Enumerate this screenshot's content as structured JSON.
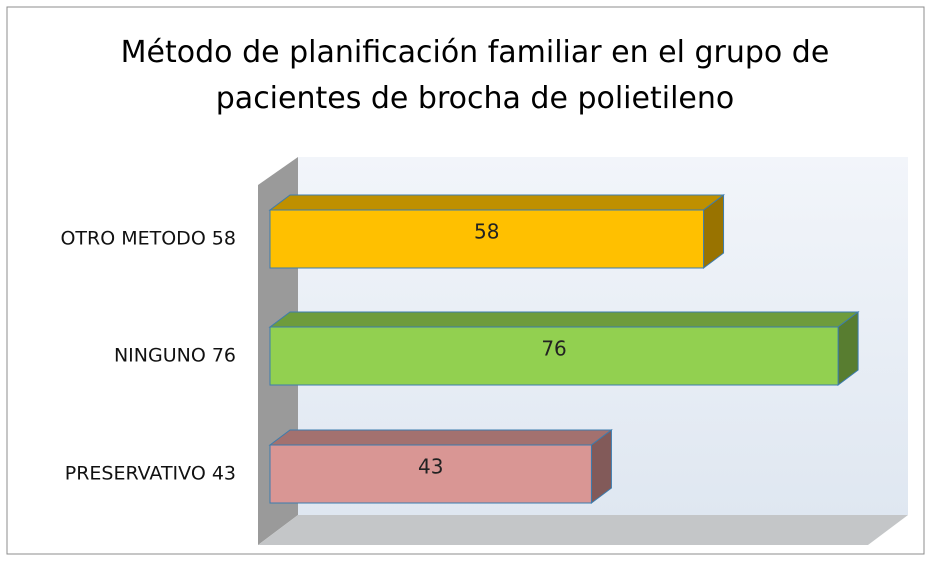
{
  "chart_data": {
    "type": "bar3d_horizontal",
    "title": "Método de planificación familiar en el grupo de pacientes de brocha de polietileno",
    "categories": [
      "OTRO METODO 58",
      "NINGUNO 76",
      "PRESERVATIVO 43"
    ],
    "values": [
      58,
      76,
      43
    ],
    "colors": [
      "#ffc000",
      "#92d050",
      "#d99694"
    ],
    "xlim": [
      0,
      80
    ]
  }
}
